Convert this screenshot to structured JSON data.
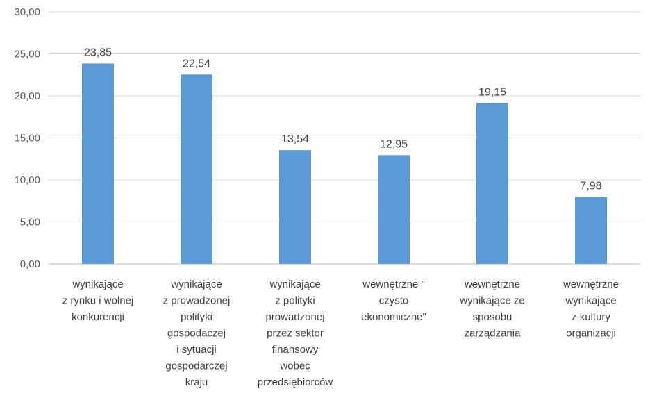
{
  "chart_data": {
    "type": "bar",
    "categories": [
      [
        "wynikające",
        "z rynku i wolnej",
        "konkurencji"
      ],
      [
        "wynikające",
        "z prowadzonej",
        "polityki",
        "gospodaczej",
        "i sytuacji",
        "gospodarczej",
        "kraju"
      ],
      [
        "wynikające",
        "z polityki",
        "prowadzonej",
        "przez sektor",
        "finansowy",
        "wobec",
        "przedsiębiorców"
      ],
      [
        "wewnętrzne \"",
        "czysto",
        "ekonomiczne\""
      ],
      [
        "wewnętrzne",
        "wynikające ze",
        "sposobu",
        "zarządzania"
      ],
      [
        "wewnętrzne",
        "wynikające",
        "z kultury",
        "organizacji"
      ]
    ],
    "values": [
      23.85,
      22.54,
      13.54,
      12.95,
      19.15,
      7.98
    ],
    "value_labels": [
      "23,85",
      "22,54",
      "13,54",
      "12,95",
      "19,15",
      "7,98"
    ],
    "y_ticks": [
      "0,00",
      "5,00",
      "10,00",
      "15,00",
      "20,00",
      "25,00",
      "30,00"
    ],
    "ylim": [
      0,
      30
    ],
    "grid": true,
    "bar_color": "#5b9bd5",
    "grid_color": "#d9d9d9"
  }
}
